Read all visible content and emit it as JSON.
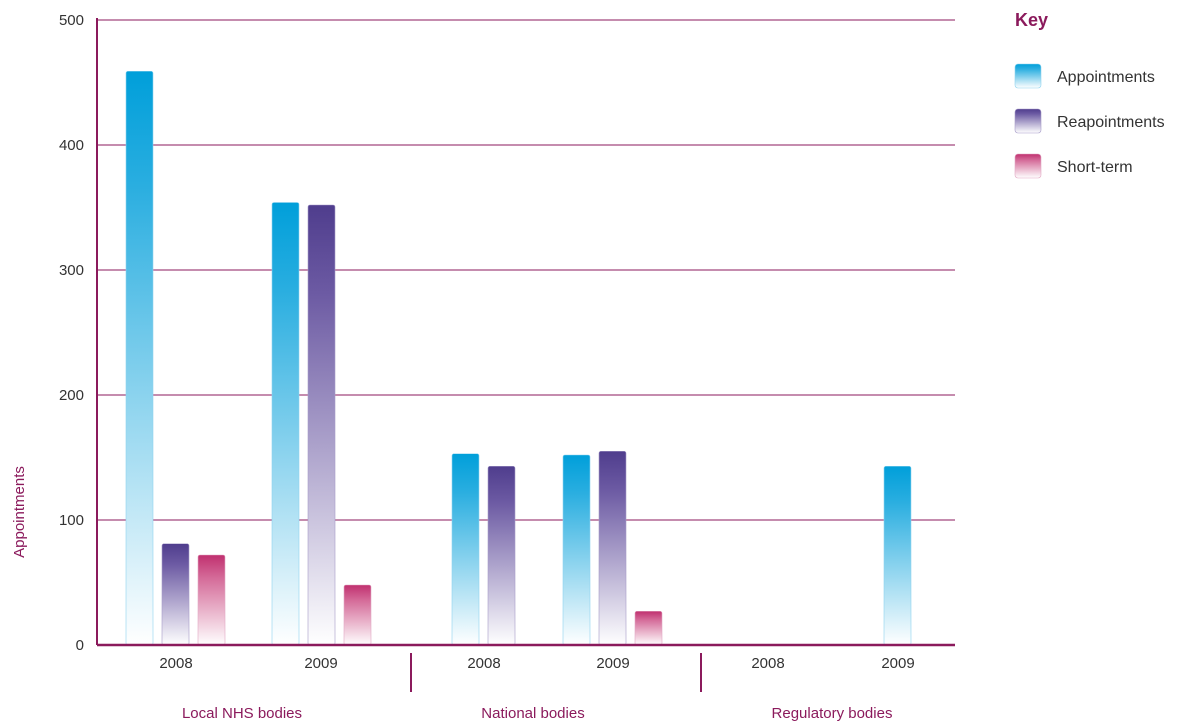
{
  "chart_data": {
    "type": "bar",
    "ylabel": "Appointments",
    "xlabel": "",
    "ylim": [
      0,
      500
    ],
    "yticks": [
      0,
      100,
      200,
      300,
      400,
      500
    ],
    "grid": true,
    "legend_title": "Key",
    "legend_position": "top-right",
    "groups": [
      {
        "label": "Local NHS bodies",
        "years": [
          "2008",
          "2009"
        ]
      },
      {
        "label": "National bodies",
        "years": [
          "2008",
          "2009"
        ]
      },
      {
        "label": "Regulatory bodies",
        "years": [
          "2008",
          "2009"
        ]
      }
    ],
    "categories": [
      "Local NHS bodies 2008",
      "Local NHS bodies 2009",
      "National bodies 2008",
      "National bodies 2009",
      "Regulatory bodies 2008",
      "Regulatory bodies 2009"
    ],
    "series": [
      {
        "name": "Appointments",
        "color": "#009fda",
        "values": [
          459,
          354,
          153,
          152,
          null,
          143
        ]
      },
      {
        "name": "Reapointments",
        "color": "#5b4696",
        "values": [
          81,
          352,
          143,
          155,
          null,
          null
        ]
      },
      {
        "name": "Short-term",
        "color": "#c0306f",
        "values": [
          72,
          48,
          null,
          27,
          null,
          null
        ]
      }
    ]
  },
  "colors": {
    "axis": "#8b1a5c",
    "grid": "#8b1a5c",
    "appointments": "#009fda",
    "reapointments": "#5b4696",
    "short_term": "#c0306f"
  }
}
